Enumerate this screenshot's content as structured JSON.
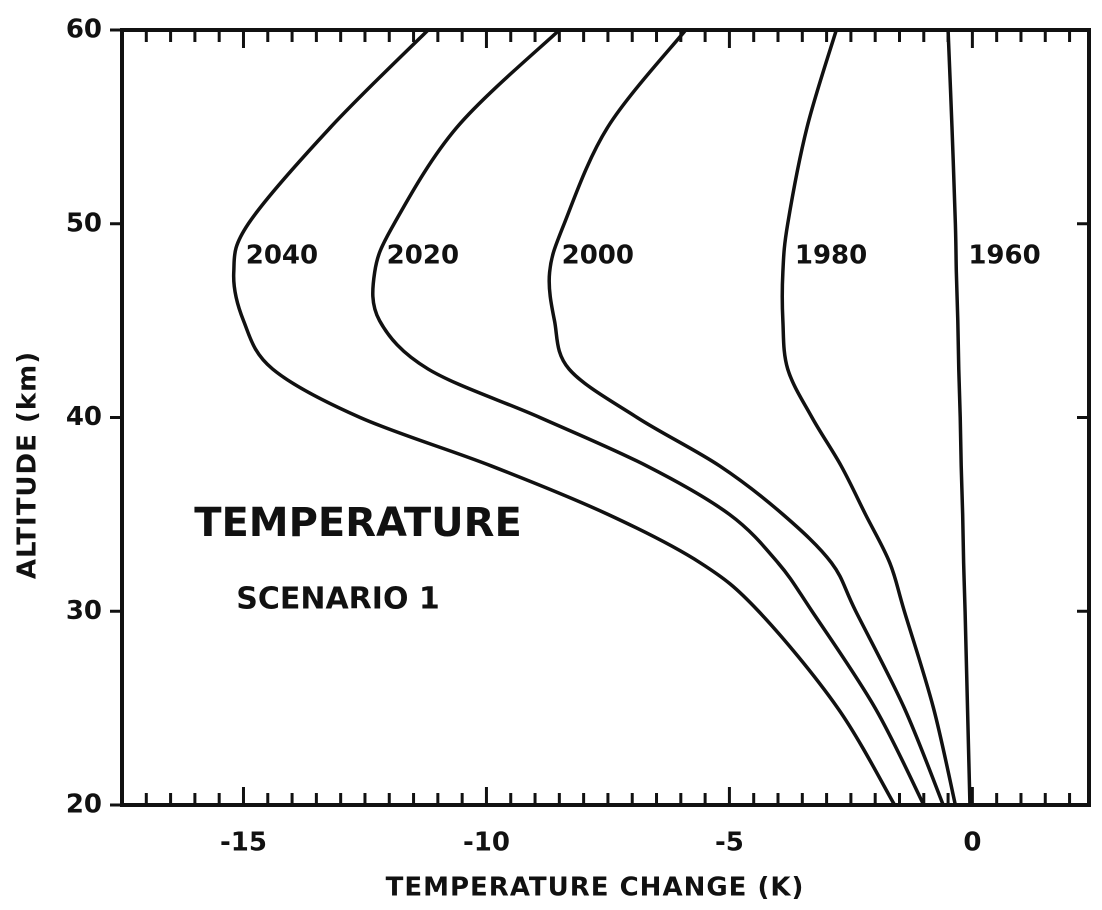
{
  "chart_data": {
    "type": "line",
    "annotations": [
      "TEMPERATURE",
      "SCENARIO 1"
    ],
    "x_label": "TEMPERATURE CHANGE (K)",
    "y_label": "ALTITUDE (km)",
    "y": [
      20,
      25,
      30,
      32.5,
      35,
      37.5,
      40,
      42.5,
      45,
      47.5,
      50,
      55,
      60
    ],
    "series": [
      {
        "name": "2040",
        "color": "#111111",
        "values": [
          -1.6,
          -2.77,
          -4.4,
          -5.6,
          -7.5,
          -9.9,
          -12.6,
          -14.4,
          -15.0,
          -15.2,
          -14.9,
          -13.2,
          -11.2
        ]
      },
      {
        "name": "2020",
        "color": "#111111",
        "values": [
          -1.0,
          -2.0,
          -3.3,
          -4.0,
          -5.0,
          -6.7,
          -8.9,
          -11.2,
          -12.2,
          -12.3,
          -11.9,
          -10.6,
          -8.5
        ]
      },
      {
        "name": "2000",
        "color": "#111111",
        "values": [
          -0.6,
          -1.4,
          -2.4,
          -2.9,
          -3.9,
          -5.2,
          -6.9,
          -8.3,
          -8.6,
          -8.7,
          -8.4,
          -7.5,
          -5.9
        ]
      },
      {
        "name": "1980",
        "color": "#111111",
        "values": [
          -0.35,
          -0.8,
          -1.4,
          -1.7,
          -2.2,
          -2.7,
          -3.3,
          -3.8,
          -3.9,
          -3.9,
          -3.8,
          -3.4,
          -2.8
        ]
      },
      {
        "name": "1960",
        "color": "#111111",
        "values": [
          -0.05,
          -0.1,
          -0.15,
          -0.18,
          -0.2,
          -0.23,
          -0.25,
          -0.28,
          -0.3,
          -0.33,
          -0.35,
          -0.42,
          -0.5
        ]
      }
    ],
    "xlim": [
      -17.5,
      2.4
    ],
    "ylim": [
      20,
      60
    ],
    "xticks": [
      -15,
      -10,
      -5,
      0
    ],
    "xminorticks": [
      -17,
      -16.5,
      -16,
      -15.5,
      -14.5,
      -14,
      -13.5,
      -13,
      -12.5,
      -12,
      -11.5,
      -11,
      -10.5,
      -9.5,
      -9,
      -8.5,
      -8,
      -7.5,
      -7,
      -6.5,
      -6,
      -5.5,
      -4.5,
      -4,
      -3.5,
      -3,
      -2.5,
      -2,
      -1.5,
      -1,
      -0.5,
      0.5,
      1,
      1.5,
      2
    ],
    "yticks": [
      20,
      30,
      40,
      50,
      60
    ],
    "grid": false
  }
}
